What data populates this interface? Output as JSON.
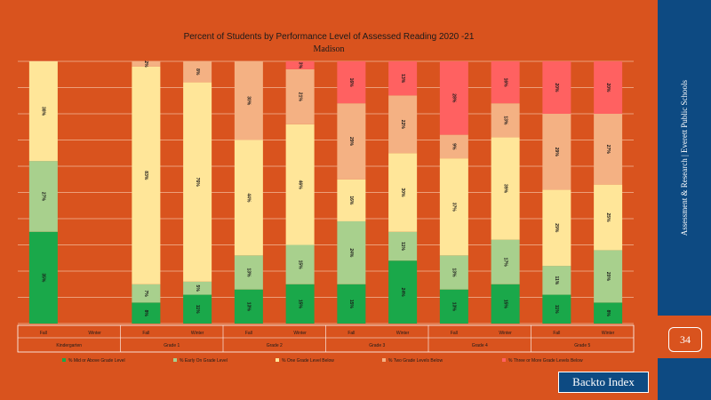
{
  "chart_data": {
    "type": "bar",
    "stacked": true,
    "title": "Percent of Students by Performance Level of Assessed Reading 2020 -21",
    "subtitle": "Madison",
    "ylim": [
      0,
      100
    ],
    "grid": true,
    "categories": [
      "Fall",
      "Winter",
      "Fall",
      "Winter",
      "Fall",
      "Winter",
      "Fall",
      "Winter",
      "Fall",
      "Winter",
      "Fall",
      "Winter"
    ],
    "groups": [
      "Kindergarten",
      "Grade 1",
      "Grade 2",
      "Grade 3",
      "Grade 4",
      "Grade 5"
    ],
    "series": [
      {
        "name": "% Mid or Above Grade Level",
        "color": "#1aa84a",
        "values": [
          35,
          0,
          8,
          11,
          13,
          15,
          15,
          24,
          13,
          15,
          11,
          8
        ],
        "labels": [
          "35%",
          "",
          "8%",
          "11%",
          "13%",
          "15%",
          "15%",
          "24%",
          "13%",
          "15%",
          "11%",
          "8%"
        ]
      },
      {
        "name": "% Early On Grade Level",
        "color": "#a8d08d",
        "values": [
          27,
          0,
          7,
          5,
          13,
          15,
          24,
          11,
          13,
          17,
          11,
          20
        ],
        "labels": [
          "27%",
          "",
          "7%",
          "5%",
          "13%",
          "15%",
          "24%",
          "11%",
          "13%",
          "17%",
          "11%",
          "20%"
        ]
      },
      {
        "name": "% One Grade Level Below",
        "color": "#ffe699",
        "values": [
          38,
          0,
          83,
          76,
          44,
          46,
          16,
          30,
          37,
          39,
          29,
          25
        ],
        "labels": [
          "38%",
          "",
          "83%",
          "76%",
          "44%",
          "46%",
          "16%",
          "30%",
          "37%",
          "39%",
          "29%",
          "25%"
        ]
      },
      {
        "name": "% Two Grade Levels Below",
        "color": "#f4b183",
        "values": [
          0,
          0,
          2,
          8,
          30,
          21,
          29,
          22,
          9,
          13,
          29,
          27
        ],
        "labels": [
          "",
          "",
          "2%",
          "8%",
          "30%",
          "21%",
          "29%",
          "22%",
          "9%",
          "13%",
          "29%",
          "27%"
        ]
      },
      {
        "name": "% Three or More Grade Levels Below",
        "color": "#ff6161",
        "values": [
          0,
          0,
          0,
          0,
          0,
          3,
          16,
          13,
          28,
          16,
          20,
          20
        ],
        "labels": [
          "",
          "",
          "",
          "",
          "",
          "3%",
          "16%",
          "13%",
          "28%",
          "16%",
          "20%",
          "20%"
        ]
      }
    ]
  },
  "sidebar": {
    "text": "Assessment & Research | Everett Public Schools"
  },
  "page_number": "34",
  "back_button": {
    "label": "Backto Index"
  }
}
